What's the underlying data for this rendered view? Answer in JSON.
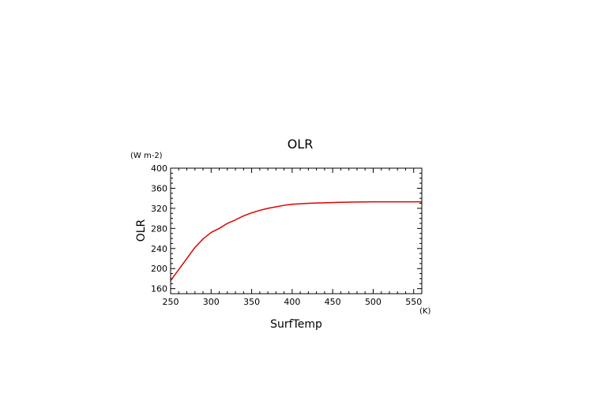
{
  "chart_data": {
    "type": "line",
    "title": "OLR",
    "xlabel": "SurfTemp",
    "ylabel": "OLR",
    "x_unit": "(K)",
    "y_unit": "(W m-2)",
    "xlim": [
      250,
      560
    ],
    "ylim": [
      150,
      400
    ],
    "x_ticks": [
      250,
      300,
      350,
      400,
      450,
      500,
      550
    ],
    "y_ticks": [
      160,
      200,
      240,
      280,
      320,
      360,
      400
    ],
    "grid": false,
    "line_color": "#e00000",
    "series": [
      {
        "x": [
          250,
          260,
          270,
          280,
          290,
          300,
          310,
          320,
          330,
          340,
          350,
          360,
          370,
          380,
          390,
          400,
          420,
          440,
          460,
          480,
          500,
          520,
          540,
          560
        ],
        "values": [
          176,
          198,
          220,
          242,
          259,
          272,
          280,
          290,
          297,
          305,
          311,
          316,
          320,
          323,
          326,
          328,
          330,
          331,
          332,
          332.5,
          333,
          333,
          333,
          333
        ]
      }
    ]
  }
}
